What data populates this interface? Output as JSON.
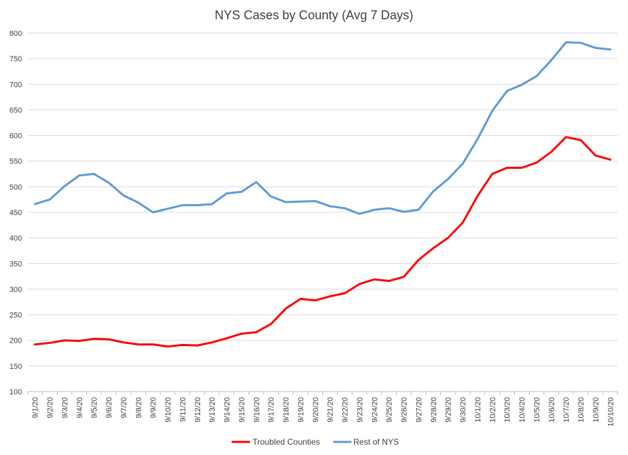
{
  "chart_data": {
    "type": "line",
    "title": "NYS Cases by County (Avg 7 Days)",
    "xlabel": "",
    "ylabel": "",
    "ylim": [
      100,
      800
    ],
    "ytick_step": 50,
    "grid": true,
    "legend_position": "bottom",
    "categories": [
      "9/1/20",
      "9/2/20",
      "9/3/20",
      "9/4/20",
      "9/5/20",
      "9/6/20",
      "9/7/20",
      "9/8/20",
      "9/9/20",
      "9/10/20",
      "9/11/20",
      "9/12/20",
      "9/13/20",
      "9/14/20",
      "9/15/20",
      "9/16/20",
      "9/17/20",
      "9/18/20",
      "9/19/20",
      "9/20/20",
      "9/21/20",
      "9/22/20",
      "9/23/20",
      "9/24/20",
      "9/25/20",
      "9/26/20",
      "9/27/20",
      "9/28/20",
      "9/29/20",
      "9/30/20",
      "10/1/20",
      "10/2/20",
      "10/3/20",
      "10/4/20",
      "10/5/20",
      "10/6/20",
      "10/7/20",
      "10/8/20",
      "10/9/20",
      "10/10/20"
    ],
    "series": [
      {
        "name": "Troubled Counties",
        "color": "#ff0000",
        "values": [
          192,
          195,
          200,
          199,
          203,
          202,
          196,
          192,
          192,
          188,
          191,
          190,
          196,
          204,
          213,
          216,
          232,
          262,
          281,
          278,
          286,
          292,
          310,
          319,
          316,
          324,
          357,
          380,
          400,
          430,
          482,
          525,
          537,
          537,
          547,
          568,
          597,
          591,
          561,
          553
        ]
      },
      {
        "name": "Rest of NYS",
        "color": "#5b9bd5",
        "values": [
          466,
          475,
          501,
          522,
          525,
          508,
          483,
          469,
          450,
          457,
          464,
          464,
          466,
          487,
          490,
          509,
          481,
          470,
          471,
          472,
          462,
          458,
          447,
          455,
          458,
          451,
          455,
          491,
          515,
          545,
          593,
          648,
          687,
          699,
          716,
          747,
          782,
          781,
          771,
          768
        ]
      }
    ]
  }
}
